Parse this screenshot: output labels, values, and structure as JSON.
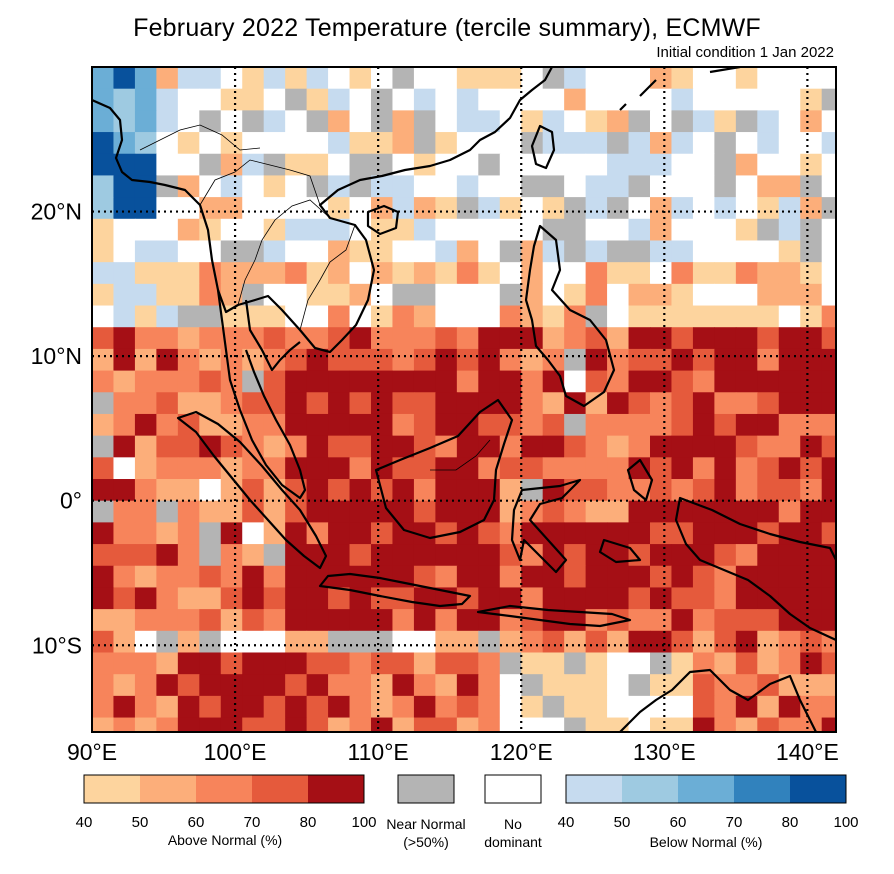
{
  "title": "February 2022 Temperature (tercile summary), ECMWF",
  "subtitle": "Initial condition 1 Jan 2022",
  "map": {
    "lon_range": [
      90,
      142
    ],
    "lat_range": [
      -16,
      30
    ],
    "lon_ticks": [
      {
        "value": 90,
        "label": "90°E"
      },
      {
        "value": 100,
        "label": "100°E"
      },
      {
        "value": 110,
        "label": "110°E"
      },
      {
        "value": 120,
        "label": "120°E"
      },
      {
        "value": 130,
        "label": "130°E"
      },
      {
        "value": 140,
        "label": "140°E"
      }
    ],
    "lat_ticks": [
      {
        "value": 20,
        "label": "20°N"
      },
      {
        "value": 10,
        "label": "10°N"
      },
      {
        "value": 0,
        "label": "0°"
      },
      {
        "value": -10,
        "label": "10°S"
      }
    ],
    "gridlines": "dotted"
  },
  "legend": {
    "above": {
      "label": "Above Normal (%)",
      "ticks": [
        "40",
        "50",
        "60",
        "70",
        "80",
        "100"
      ],
      "colors": [
        "#fdd49e",
        "#fcae7a",
        "#f7845b",
        "#e55a3c",
        "#a50f15"
      ]
    },
    "near": {
      "label_line1": "Near Normal",
      "label_line2": "(>50%)",
      "color": "#b4b4b4"
    },
    "none": {
      "label_line1": "No",
      "label_line2": "dominant",
      "color": "#ffffff"
    },
    "below": {
      "label": "Below Normal (%)",
      "ticks": [
        "40",
        "50",
        "60",
        "70",
        "80",
        "100"
      ],
      "colors": [
        "#c6dbef",
        "#9ecae1",
        "#6baed6",
        "#3182bd",
        "#08519c"
      ]
    }
  },
  "colors": {
    "ocean_base": "#fcae7a",
    "coastline": "#000000"
  }
}
